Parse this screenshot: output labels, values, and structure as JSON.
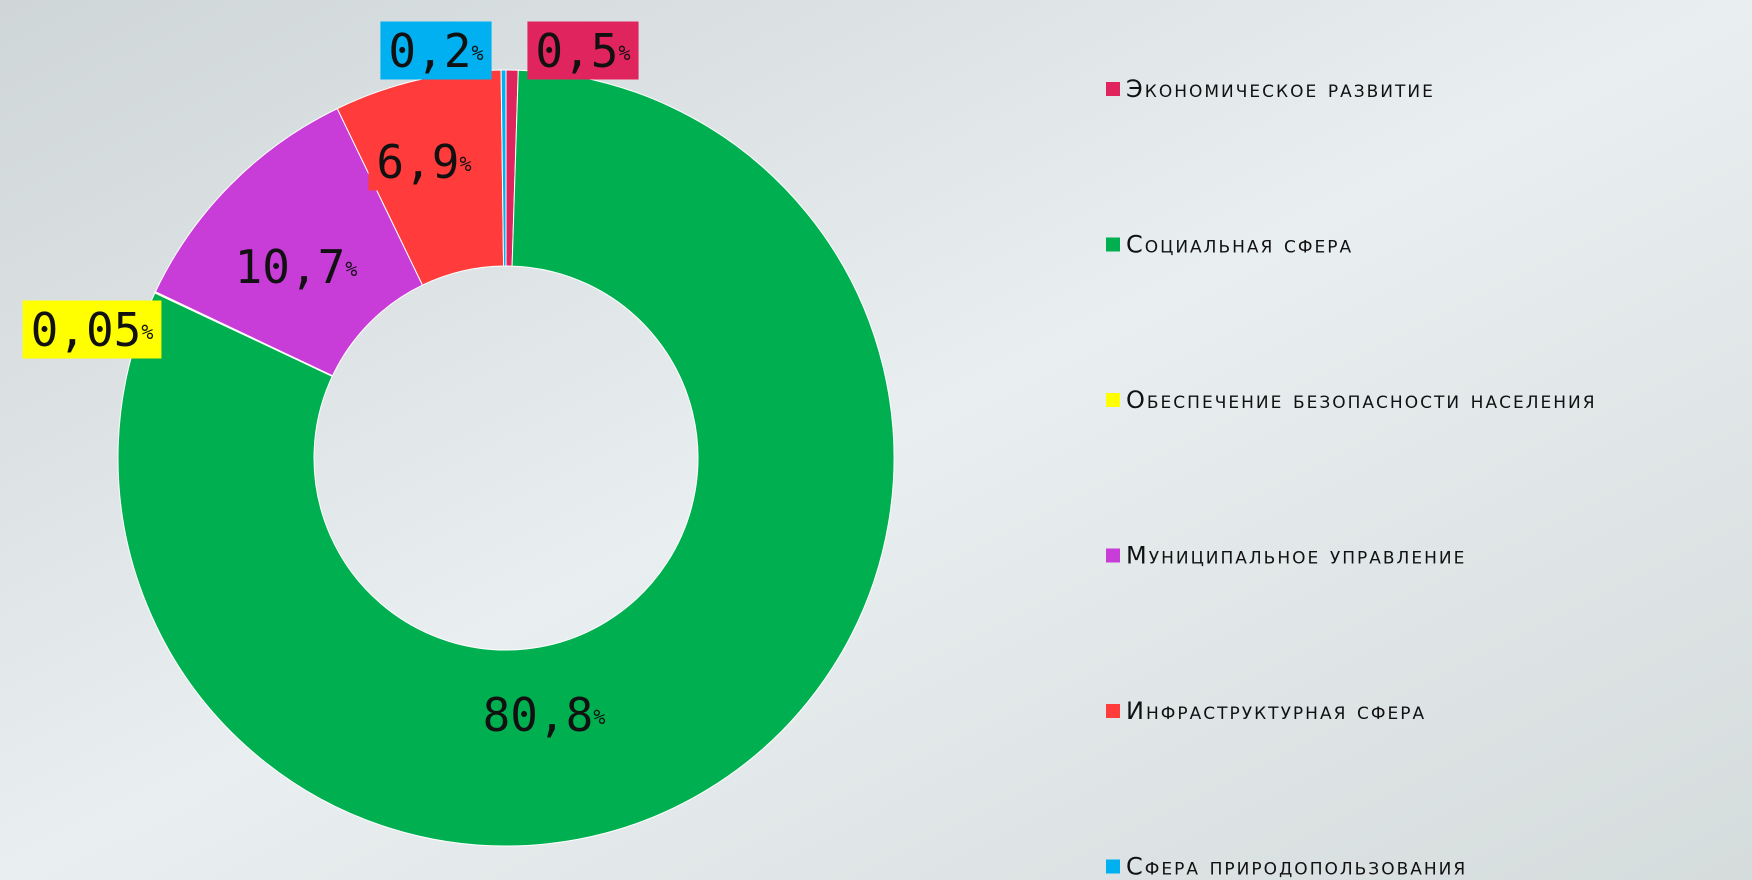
{
  "chart_data": {
    "type": "donut",
    "categories": [
      "Экономическое развитие",
      "Социальная сфера",
      "Обеспечение безопасности населения",
      "Муниципальное управление",
      "Инфраструктурная сфера",
      "Сфера природопользования"
    ],
    "values": [
      0.5,
      80.8,
      0.05,
      10.7,
      6.9,
      0.2
    ],
    "value_labels": [
      "0,5",
      "80,8",
      "0,05",
      "10,7",
      "6,9",
      "0,2"
    ],
    "unit": "%",
    "colors": [
      "#e0245e",
      "#00b050",
      "#ffff00",
      "#c83cd8",
      "#ff3b3b",
      "#00b0f0"
    ],
    "legend": "right"
  }
}
